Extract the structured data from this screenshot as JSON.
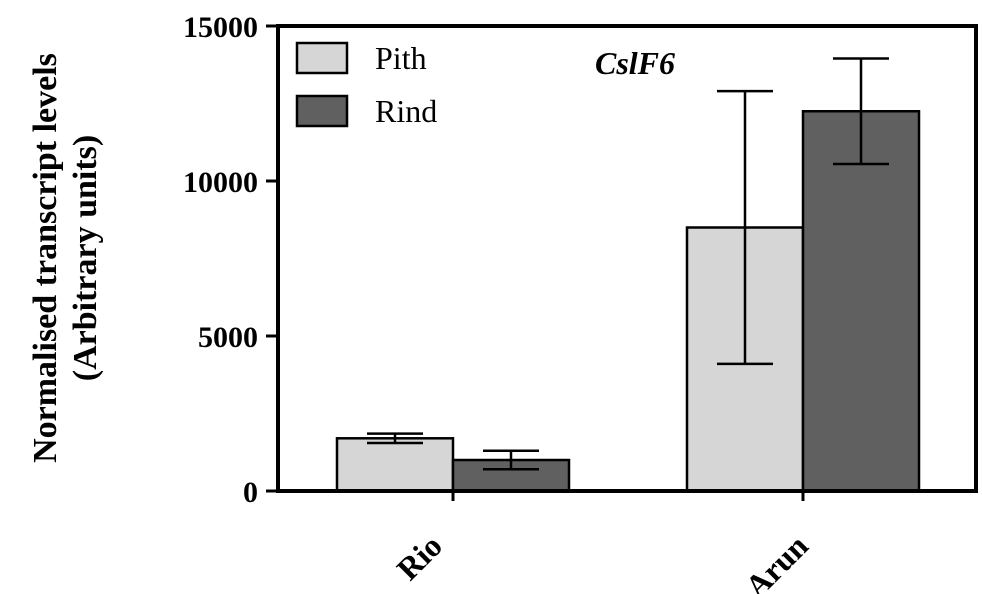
{
  "chart_data": {
    "type": "bar",
    "categories": [
      "Rio",
      "Arun"
    ],
    "series": [
      {
        "name": "Pith",
        "color": "#d6d6d6",
        "values": [
          1700,
          8500
        ],
        "error": [
          150,
          4400
        ]
      },
      {
        "name": "Rind",
        "color": "#606060",
        "values": [
          1000,
          12250
        ],
        "error": [
          300,
          1700
        ]
      }
    ],
    "ylabel_line1": "Normalised transcript levels",
    "ylabel_line2": "(Arbitrary units)",
    "xlabel": "",
    "ylim": [
      0,
      15000
    ],
    "yticks": [
      0,
      5000,
      10000,
      15000
    ],
    "annotation": "CslF6",
    "legend_position": "top-left",
    "grid": false
  }
}
